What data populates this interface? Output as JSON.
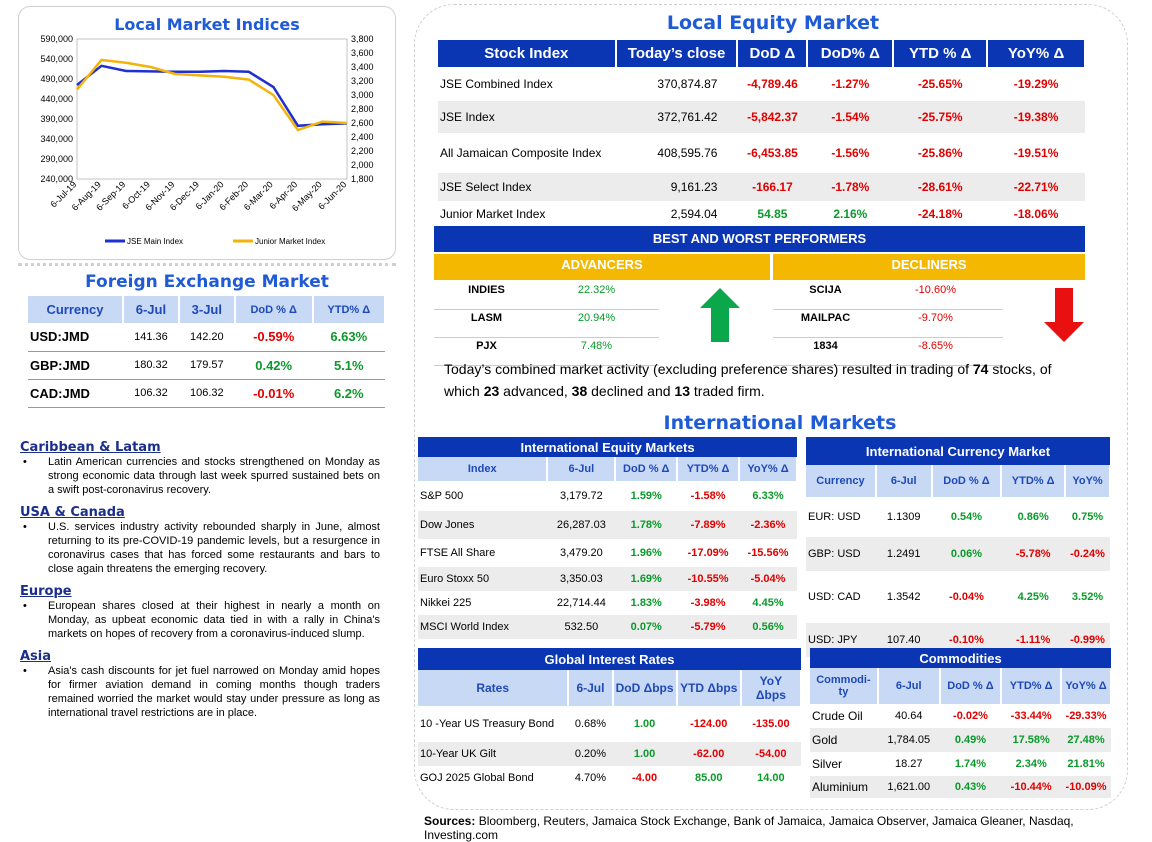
{
  "local_indices": {
    "title": "Local Market Indices",
    "legend": [
      "JSE Main Index",
      "Junior Market Index"
    ]
  },
  "chart_data": {
    "type": "line",
    "title": "Local Market Indices",
    "categories": [
      "6-Jul-19",
      "6-Aug-19",
      "6-Sep-19",
      "6-Oct-19",
      "6-Nov-19",
      "6-Dec-19",
      "6-Jan-20",
      "6-Feb-20",
      "6-Mar-20",
      "6-Apr-20",
      "6-May-20",
      "6-Jun-20"
    ],
    "y_left_ticks": [
      "590,000",
      "540,000",
      "490,000",
      "440,000",
      "390,000",
      "340,000",
      "290,000",
      "240,000"
    ],
    "y_right_ticks": [
      "3,800",
      "3,600",
      "3,400",
      "3,200",
      "3,000",
      "2,800",
      "2,600",
      "2,400",
      "2,200",
      "2,000",
      "1,800"
    ],
    "ylim_left": [
      240000,
      590000
    ],
    "ylim_right": [
      1800,
      3800
    ],
    "series": [
      {
        "name": "JSE Main Index",
        "axis": "left",
        "color": "#1f2fd0",
        "values": [
          475000,
          523000,
          510000,
          509000,
          508000,
          508000,
          510000,
          508000,
          470000,
          373000,
          377000,
          379000
        ]
      },
      {
        "name": "Junior Market Index",
        "axis": "right",
        "color": "#f2b40a",
        "values": [
          3080,
          3500,
          3460,
          3400,
          3300,
          3280,
          3260,
          3220,
          3000,
          2500,
          2620,
          2600
        ]
      }
    ]
  },
  "fx": {
    "title": "Foreign Exchange Market",
    "headers": [
      "Currency",
      "6-Jul",
      "3-Jul",
      "DoD % Δ",
      "YTD% Δ"
    ],
    "rows": [
      [
        "USD:JMD",
        "141.36",
        "142.20",
        "-0.59%",
        "6.63%"
      ],
      [
        "GBP:JMD",
        "180.32",
        "179.57",
        "0.42%",
        "5.1%"
      ],
      [
        "CAD:JMD",
        "106.32",
        "106.32",
        "-0.01%",
        "6.2%"
      ]
    ]
  },
  "news": [
    {
      "region": "Caribbean & Latam",
      "text": "Latin American currencies and stocks strengthened on Monday as  strong economic data through last week spurred sustained bets on a swift post-coronavirus recovery."
    },
    {
      "region": "USA & Canada",
      "text": "U.S. services industry activity rebounded sharply in June, almost returning to its pre-COVID-19 pandemic levels, but a resurgence in coronavirus cases that has forced some restaurants and bars to close again threatens the emerging recovery."
    },
    {
      "region": "Europe",
      "text": "European shares closed at their highest in nearly a month on Monday, as upbeat economic data tied in with a rally in China's markets on hopes of recovery from a coronavirus-induced slump."
    },
    {
      "region": "Asia",
      "text": "Asia's cash discounts for jet fuel narrowed on Monday amid hopes for firmer aviation demand in coming months though traders  remained worried the market would stay under pressure as long as international travel restrictions are in place."
    }
  ],
  "equity": {
    "title": "Local Equity Market",
    "headers": [
      "Stock Index",
      "Today’s close",
      "DoD  Δ",
      "DoD% Δ",
      "YTD % Δ",
      "YoY% Δ"
    ],
    "rows": [
      [
        "JSE Combined Index",
        "370,874.87",
        "-4,789.46",
        "-1.27%",
        "-25.65%",
        "-19.29%"
      ],
      [
        "JSE Index",
        "372,761.42",
        "-5,842.37",
        "-1.54%",
        "-25.75%",
        "-19.38%"
      ],
      [
        "All Jamaican Composite Index",
        "408,595.76",
        "-6,453.85",
        "-1.56%",
        "-25.86%",
        "-19.51%"
      ],
      [
        "JSE Select Index",
        "9,161.23",
        "-166.17",
        "-1.78%",
        "-28.61%",
        "-22.71%"
      ],
      [
        "Junior Market Index",
        "2,594.04",
        "54.85",
        "2.16%",
        "-24.18%",
        "-18.06%"
      ]
    ]
  },
  "performers": {
    "title": "BEST AND WORST PERFORMERS",
    "advancers_label": "ADVANCERS",
    "decliners_label": "DECLINERS",
    "advancers": [
      [
        "INDIES",
        "22.32%"
      ],
      [
        "LASM",
        "20.94%"
      ],
      [
        "PJX",
        "7.48%"
      ]
    ],
    "decliners": [
      [
        "SCIJA",
        "-10.60%"
      ],
      [
        "MAILPAC",
        "-9.70%"
      ],
      [
        "1834",
        "-8.65%"
      ]
    ],
    "summary": [
      "Today’s combined market activity (excluding preference shares) resulted in trading of ",
      "74",
      " stocks, of which ",
      "23",
      " advanced, ",
      "38",
      " declined and ",
      "13",
      " traded firm."
    ]
  },
  "intl": {
    "title": "International Markets",
    "equity": {
      "title": "International Equity Markets",
      "headers": [
        "Index",
        "6-Jul",
        "DoD % Δ",
        "YTD% Δ",
        "YoY% Δ"
      ],
      "rows": [
        [
          "S&P 500",
          "3,179.72",
          "1.59%",
          "-1.58%",
          "6.33%"
        ],
        [
          "Dow Jones",
          "26,287.03",
          "1.78%",
          "-7.89%",
          "-2.36%"
        ],
        [
          "FTSE All Share",
          "3,479.20",
          "1.96%",
          "-17.09%",
          "-15.56%"
        ],
        [
          "Euro Stoxx 50",
          "3,350.03",
          "1.69%",
          "-10.55%",
          "-5.04%"
        ],
        [
          "Nikkei 225",
          "22,714.44",
          "1.83%",
          "-3.98%",
          "4.45%"
        ],
        [
          "MSCI World Index",
          "532.50",
          "0.07%",
          "-5.79%",
          "0.56%"
        ]
      ]
    },
    "currency": {
      "title": "International Currency Market",
      "headers": [
        "Currency",
        "6-Jul",
        "DoD % Δ",
        "YTD% Δ",
        "YoY%"
      ],
      "rows": [
        [
          "EUR: USD",
          "1.1309",
          "0.54%",
          "0.86%",
          "0.75%"
        ],
        [
          "GBP: USD",
          "1.2491",
          "0.06%",
          "-5.78%",
          "-0.24%"
        ],
        [
          "USD: CAD",
          "1.3542",
          "-0.04%",
          "4.25%",
          "3.52%"
        ],
        [
          "USD: JPY",
          "107.40",
          "-0.10%",
          "-1.11%",
          "-0.99%"
        ]
      ]
    },
    "rates": {
      "title": "Global Interest Rates",
      "headers": [
        "Rates",
        "6-Jul",
        "DoD Δbps",
        "YTD Δbps",
        "YoY Δbps"
      ],
      "rows": [
        [
          "10 -Year US Treasury Bond",
          "0.68%",
          "1.00",
          "-124.00",
          "-135.00"
        ],
        [
          "10-Year UK Gilt",
          "0.20%",
          "1.00",
          "-62.00",
          "-54.00"
        ],
        [
          "GOJ 2025 Global Bond",
          "4.70%",
          "-4.00",
          "85.00",
          "14.00"
        ]
      ]
    },
    "commodities": {
      "title": "Commodities",
      "headers": [
        "Commodi-ty",
        "6-Jul",
        "DoD % Δ",
        "YTD% Δ",
        "YoY% Δ"
      ],
      "rows": [
        [
          "Crude Oil",
          "40.64",
          "-0.02%",
          "-33.44%",
          "-29.33%"
        ],
        [
          "Gold",
          "1,784.05",
          "0.49%",
          "17.58%",
          "27.48%"
        ],
        [
          "Silver",
          "18.27",
          "1.74%",
          "2.34%",
          "21.81%"
        ],
        [
          "Aluminium",
          "1,621.00",
          "0.43%",
          "-10.44%",
          "-10.09%"
        ]
      ]
    }
  },
  "sources": {
    "label": "Sources:",
    "text": " Bloomberg, Reuters, Jamaica Stock Exchange, Bank of Jamaica, Jamaica Observer, Jamaica Gleaner, Nasdaq, Investing.com"
  }
}
